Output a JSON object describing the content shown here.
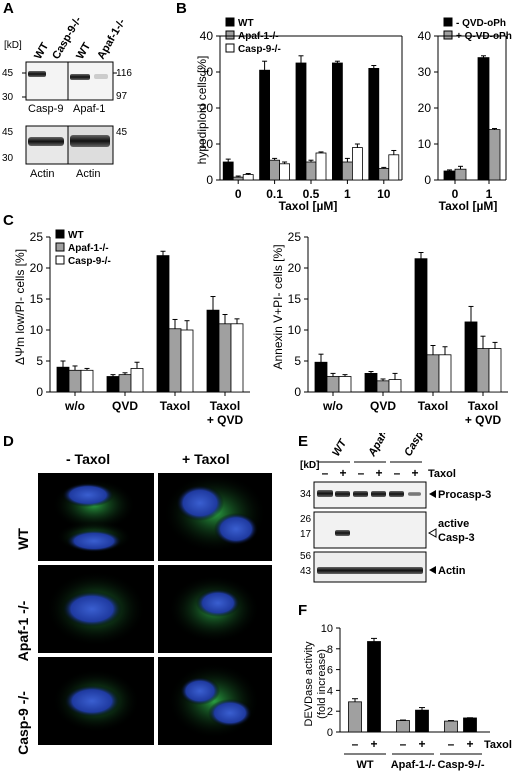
{
  "panels": {
    "A": "A",
    "B": "B",
    "C": "C",
    "D": "D",
    "E": "E",
    "F": "F"
  },
  "panelA": {
    "kd_label": "[kD]",
    "lanes_left": [
      "WT",
      "Casp-9-/-"
    ],
    "lanes_right": [
      "WT",
      "Apaf-1-/-"
    ],
    "mw_left_top": [
      "45",
      "30"
    ],
    "mw_right_top": [
      "116",
      "97"
    ],
    "mw_left_bottom": [
      "45",
      "30"
    ],
    "mw_right_bottom": [
      "45"
    ],
    "label_casp9": "Casp-9",
    "label_apaf1": "Apaf-1",
    "label_actin_left": "Actin",
    "label_actin_right": "Actin"
  },
  "chart_data": [
    {
      "id": "B-left",
      "type": "bar",
      "categories": [
        "0",
        "0.1",
        "0.5",
        "1",
        "10"
      ],
      "xlabel": "Taxol [µM]",
      "ylabel": "hypodiploid cells [%]",
      "ylim": [
        0,
        40
      ],
      "yticks": [
        0,
        10,
        20,
        30,
        40
      ],
      "series": [
        {
          "name": "WT",
          "color": "#000000",
          "values": [
            5,
            30.5,
            32.5,
            32.5,
            31
          ],
          "err": [
            0.8,
            2.5,
            2,
            0.5,
            0.8
          ]
        },
        {
          "name": "Apaf-1-/-",
          "color": "#a0a0a0",
          "values": [
            0.8,
            5.5,
            5,
            5,
            3.2
          ],
          "err": [
            0.3,
            0.5,
            0.5,
            1,
            0.3
          ]
        },
        {
          "name": "Casp-9-/-",
          "color": "#ffffff",
          "values": [
            1.5,
            4.5,
            7.5,
            9,
            7
          ],
          "err": [
            0.3,
            0.5,
            0.3,
            1,
            1.2
          ]
        }
      ]
    },
    {
      "id": "B-right",
      "type": "bar",
      "categories": [
        "0",
        "1"
      ],
      "xlabel": "Taxol [µM]",
      "ylabel": "",
      "ylim": [
        0,
        40
      ],
      "yticks": [
        0,
        10,
        20,
        30,
        40
      ],
      "series": [
        {
          "name": "- QVD-oPh",
          "color": "#000000",
          "values": [
            2.5,
            34
          ],
          "err": [
            0.3,
            0.5
          ]
        },
        {
          "name": "+ Q-VD-oPh",
          "color": "#a0a0a0",
          "values": [
            3,
            14
          ],
          "err": [
            0.8,
            0.3
          ]
        }
      ]
    },
    {
      "id": "C-left",
      "type": "bar",
      "categories": [
        "w/o",
        "QVD",
        "Taxol",
        "Taxol + QVD"
      ],
      "xlabel": "",
      "ylabel": "ΔΨm low/PI- cells [%]",
      "ylim": [
        0,
        25
      ],
      "yticks": [
        0,
        5,
        10,
        15,
        20,
        25
      ],
      "series": [
        {
          "name": "WT",
          "color": "#000000",
          "values": [
            4,
            2.5,
            22,
            13.2
          ],
          "err": [
            1,
            0.3,
            0.7,
            2.2
          ]
        },
        {
          "name": "Apaf-1-/-",
          "color": "#a0a0a0",
          "values": [
            3.5,
            2.8,
            10.2,
            11
          ],
          "err": [
            0.7,
            0.3,
            1.5,
            1.5
          ]
        },
        {
          "name": "Casp-9-/-",
          "color": "#ffffff",
          "values": [
            3.5,
            3.8,
            10,
            11
          ],
          "err": [
            0.3,
            1,
            1.5,
            0.8
          ]
        }
      ]
    },
    {
      "id": "C-right",
      "type": "bar",
      "categories": [
        "w/o",
        "QVD",
        "Taxol",
        "Taxol + QVD"
      ],
      "xlabel": "",
      "ylabel": "Annexin V+PI- cells [%]",
      "ylim": [
        0,
        25
      ],
      "yticks": [
        0,
        5,
        10,
        15,
        20,
        25
      ],
      "series": [
        {
          "name": "WT",
          "color": "#000000",
          "values": [
            4.8,
            3,
            21.5,
            11.3
          ],
          "err": [
            1.3,
            0.3,
            1,
            2.5
          ]
        },
        {
          "name": "Apaf-1-/-",
          "color": "#a0a0a0",
          "values": [
            2.5,
            1.8,
            6,
            7
          ],
          "err": [
            0.5,
            0.3,
            1.5,
            2
          ]
        },
        {
          "name": "Casp-9-/-",
          "color": "#ffffff",
          "values": [
            2.5,
            2,
            6,
            7
          ],
          "err": [
            0.3,
            1,
            1.3,
            1
          ]
        }
      ]
    },
    {
      "id": "F",
      "type": "bar",
      "categories": [
        "WT -",
        "WT +",
        "Apaf-1 -",
        "Apaf-1 +",
        "Casp-9 -",
        "Casp-9 +"
      ],
      "xlabel": "",
      "ylabel": "DEVDase activity (fold increase)",
      "ylim": [
        0,
        10
      ],
      "yticks": [
        0,
        2,
        4,
        6,
        8,
        10
      ],
      "values": [
        2.9,
        8.7,
        1.1,
        2.1,
        1.05,
        1.35
      ],
      "err": [
        0.3,
        0.3,
        0.05,
        0.25,
        0.05,
        0.02
      ],
      "colors": [
        "#a0a0a0",
        "#000000",
        "#a0a0a0",
        "#000000",
        "#a0a0a0",
        "#000000"
      ]
    }
  ],
  "panelD": {
    "col_labels": [
      "- Taxol",
      "+ Taxol"
    ],
    "row_labels": [
      "WT",
      "Apaf-1 -/-",
      "Casp-9 -/-"
    ]
  },
  "panelE": {
    "kd_label": "[kD]",
    "groups": [
      "WT",
      "Apaf-1-/-",
      "Casp-9-/-"
    ],
    "signs": [
      "–",
      "+",
      "–",
      "+",
      "–",
      "+"
    ],
    "taxol_label": "Taxol",
    "mw_top": [
      "34"
    ],
    "mw_mid": [
      "26",
      "17"
    ],
    "mw_bot": [
      "56",
      "43"
    ],
    "label_procasp": "Procasp-3",
    "label_active_1": "active",
    "label_active_2": "Casp-3",
    "label_actin": "Actin"
  },
  "panelF": {
    "signs": [
      "–",
      "+",
      "–",
      "+",
      "–",
      "+"
    ],
    "taxol_label": "Taxol",
    "groups": [
      "WT",
      "Apaf-1-/-",
      "Casp-9-/-"
    ]
  }
}
